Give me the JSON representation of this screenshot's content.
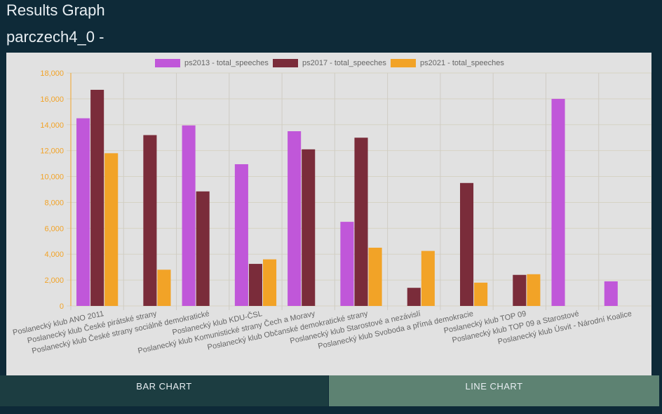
{
  "header": {
    "title": "Results Graph",
    "subtitle": "parczech4_0 -"
  },
  "tabs": [
    {
      "label": "BAR CHART"
    },
    {
      "label": "LINE CHART"
    }
  ],
  "chart_data": {
    "type": "bar",
    "categories": [
      "Poslanecký klub ANO 2011",
      "Poslanecký klub České pirátské strany",
      "Poslanecký klub České strany sociálně demokratické",
      "Poslanecký klub KDU-ČSL",
      "Poslanecký klub Komunistické strany Čech a Moravy",
      "Poslanecký klub Občanské demokratické strany",
      "Poslanecký klub Starostové a nezávislí",
      "Poslanecký klub Svoboda a přímá demokracie",
      "Poslanecký klub TOP 09",
      "Poslanecký klub TOP 09 a Starostové",
      "Poslanecký klub Úsvit - Národní Koalice"
    ],
    "series": [
      {
        "name": "ps2013 - total_speeches",
        "color": "#c057d9",
        "values": [
          14500,
          null,
          13950,
          10950,
          13500,
          6500,
          null,
          null,
          null,
          16000,
          1900
        ]
      },
      {
        "name": "ps2017 - total_speeches",
        "color": "#7a2c3a",
        "values": [
          16700,
          13200,
          8850,
          3250,
          12100,
          13000,
          1400,
          9500,
          2400,
          null,
          null
        ]
      },
      {
        "name": "ps2021 - total_speeches",
        "color": "#f2a327",
        "values": [
          11800,
          2800,
          null,
          3600,
          null,
          4500,
          4250,
          1800,
          2450,
          null,
          null
        ]
      }
    ],
    "ylim": [
      0,
      18000
    ],
    "yticks": [
      "0",
      "2,000",
      "4,000",
      "6,000",
      "8,000",
      "10,000",
      "12,000",
      "14,000",
      "16,000",
      "18,000"
    ],
    "grid": true,
    "legend": "top-center",
    "xlabel": "",
    "ylabel": ""
  }
}
